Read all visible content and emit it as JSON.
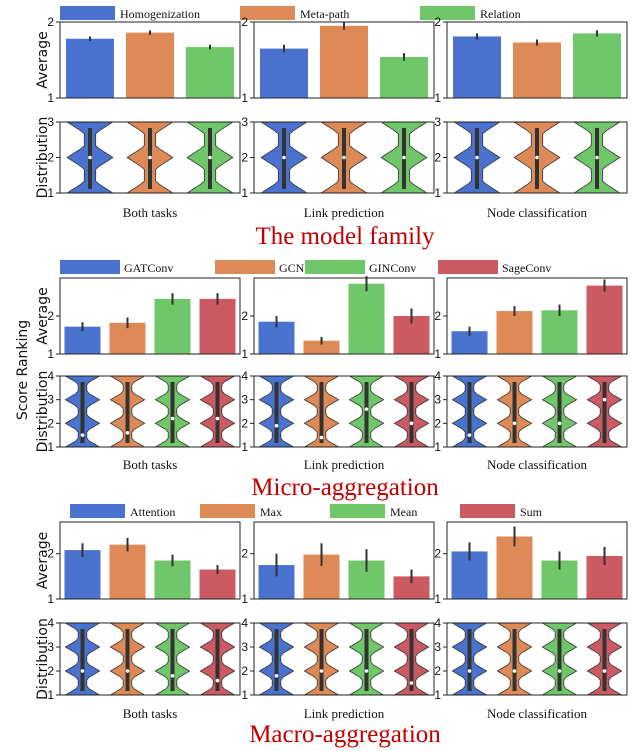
{
  "figure": {
    "shared_ylabel": "Score Ranking",
    "average_label": "Average",
    "distribution_label": "Distribution"
  },
  "colors": {
    "blue": "#4a72cf",
    "orange": "#de8a56",
    "green": "#6fc76a",
    "red": "#cc5a63"
  },
  "chart_data": [
    {
      "type": "bar",
      "title": "The model family",
      "legend": [
        "Homogenization",
        "Meta-path",
        "Relation"
      ],
      "panels": [
        {
          "subtitle": "Both tasks",
          "averages": [
            1.78,
            1.86,
            1.67
          ],
          "errors": [
            0.03,
            0.03,
            0.03
          ],
          "violins": [
            {
              "median": 2.0
            },
            {
              "median": 2.0
            },
            {
              "median": 2.0
            }
          ]
        },
        {
          "subtitle": "Link prediction",
          "averages": [
            1.65,
            1.95,
            1.54
          ],
          "errors": [
            0.05,
            0.05,
            0.05
          ],
          "violins": [
            {
              "median": 2.0
            },
            {
              "median": 2.0
            },
            {
              "median": 2.0
            }
          ]
        },
        {
          "subtitle": "Node classification",
          "averages": [
            1.81,
            1.73,
            1.85
          ],
          "errors": [
            0.04,
            0.04,
            0.04
          ],
          "violins": [
            {
              "median": 2.0
            },
            {
              "median": 2.0
            },
            {
              "median": 2.0
            }
          ]
        }
      ],
      "avg_ylim": [
        1,
        2
      ],
      "avg_ticks": [
        1,
        2
      ],
      "dist_ylim": [
        1,
        3
      ],
      "dist_ticks": [
        1,
        2,
        3
      ]
    },
    {
      "type": "bar",
      "title": "Micro-aggregation",
      "legend": [
        "GATConv",
        "GCNConv",
        "GINConv",
        "SageConv"
      ],
      "panels": [
        {
          "subtitle": "Both tasks",
          "averages": [
            1.72,
            1.82,
            2.45,
            2.45
          ],
          "errors": [
            0.12,
            0.14,
            0.15,
            0.15
          ],
          "violins": [
            {
              "median": 1.5
            },
            {
              "median": 1.6
            },
            {
              "median": 2.2
            },
            {
              "median": 2.2
            }
          ]
        },
        {
          "subtitle": "Link prediction",
          "averages": [
            1.85,
            1.35,
            2.85,
            2.0
          ],
          "errors": [
            0.15,
            0.1,
            0.2,
            0.2
          ],
          "violins": [
            {
              "median": 1.9
            },
            {
              "median": 1.4
            },
            {
              "median": 2.6
            },
            {
              "median": 2.0
            }
          ]
        },
        {
          "subtitle": "Node classification",
          "averages": [
            1.6,
            2.13,
            2.15,
            2.8
          ],
          "errors": [
            0.12,
            0.13,
            0.15,
            0.16
          ],
          "violins": [
            {
              "median": 1.5
            },
            {
              "median": 2.0
            },
            {
              "median": 2.0
            },
            {
              "median": 3.0
            }
          ]
        }
      ],
      "avg_ylim": [
        1,
        3
      ],
      "avg_ticks": [
        1,
        2
      ],
      "dist_ylim": [
        1,
        4
      ],
      "dist_ticks": [
        1,
        2,
        3,
        4
      ]
    },
    {
      "type": "bar",
      "title": "Macro-aggregation",
      "legend": [
        "Attention",
        "Max",
        "Mean",
        "Sum"
      ],
      "panels": [
        {
          "subtitle": "Both tasks",
          "averages": [
            2.08,
            2.2,
            1.85,
            1.65
          ],
          "errors": [
            0.15,
            0.15,
            0.13,
            0.1
          ],
          "violins": [
            {
              "median": 2.0
            },
            {
              "median": 2.0
            },
            {
              "median": 1.8
            },
            {
              "median": 1.6
            }
          ]
        },
        {
          "subtitle": "Link prediction",
          "averages": [
            1.75,
            1.98,
            1.85,
            1.5
          ],
          "errors": [
            0.25,
            0.25,
            0.25,
            0.15
          ],
          "violins": [
            {
              "median": 1.8
            },
            {
              "median": 2.0
            },
            {
              "median": 2.0
            },
            {
              "median": 1.5
            }
          ]
        },
        {
          "subtitle": "Node classification",
          "averages": [
            2.05,
            2.38,
            1.85,
            1.95
          ],
          "errors": [
            0.2,
            0.22,
            0.2,
            0.2
          ],
          "violins": [
            {
              "median": 2.0
            },
            {
              "median": 2.0
            },
            {
              "median": 2.0
            },
            {
              "median": 2.0
            }
          ]
        }
      ],
      "avg_ylim": [
        1,
        2.7
      ],
      "avg_ticks": [
        1,
        2
      ],
      "dist_ylim": [
        1,
        4
      ],
      "dist_ticks": [
        1,
        2,
        3,
        4
      ]
    }
  ]
}
